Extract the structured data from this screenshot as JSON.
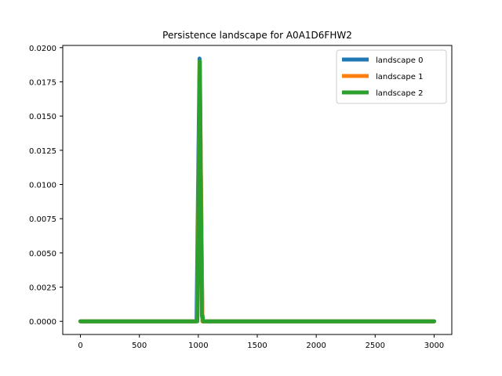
{
  "chart_data": {
    "type": "line",
    "title": "Persistence landscape for A0A1D6FHW2",
    "xlabel": "",
    "ylabel": "",
    "xlim": [
      -150,
      3150
    ],
    "ylim": [
      -0.00096,
      0.02016
    ],
    "x_ticks": [
      0,
      500,
      1000,
      1500,
      2000,
      2500,
      3000
    ],
    "x_tick_labels": [
      "0",
      "500",
      "1000",
      "1500",
      "2000",
      "2500",
      "3000"
    ],
    "y_ticks": [
      0.0,
      0.0025,
      0.005,
      0.0075,
      0.01,
      0.0125,
      0.015,
      0.0175,
      0.02
    ],
    "y_tick_labels": [
      "0.0000",
      "0.0025",
      "0.0050",
      "0.0075",
      "0.0100",
      "0.0125",
      "0.0150",
      "0.0175",
      "0.0200"
    ],
    "grid": false,
    "legend_position": "top-right",
    "series": [
      {
        "name": "landscape 0",
        "color": "#1f77b4",
        "x": [
          0,
          985,
          1010,
          1035,
          3000
        ],
        "y": [
          0,
          0,
          0.0192,
          0,
          0
        ]
      },
      {
        "name": "landscape 1",
        "color": "#ff7f0e",
        "x": [
          0,
          990,
          1012,
          1035,
          3000
        ],
        "y": [
          0,
          0,
          0.019,
          0,
          0
        ]
      },
      {
        "name": "landscape 2",
        "color": "#2ca02c",
        "x": [
          0,
          992,
          1013,
          1030,
          1033,
          1036,
          1040,
          3000
        ],
        "y": [
          0,
          0,
          0.019,
          0.0004,
          0.0003,
          0.0004,
          0,
          0
        ]
      }
    ]
  }
}
